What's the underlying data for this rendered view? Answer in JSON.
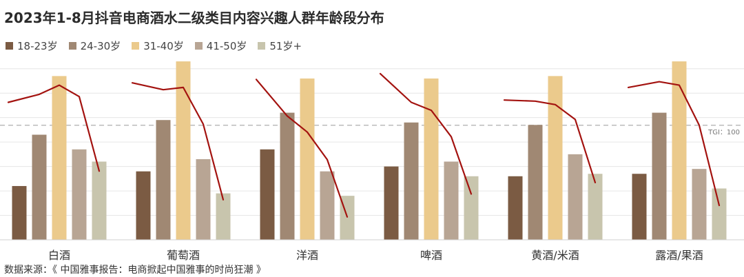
{
  "chart_data": {
    "type": "bar",
    "title": "2023年1-8月抖音电商酒水二级类目内容兴趣人群年龄段分布",
    "categories": [
      "白酒",
      "葡萄酒",
      "洋酒",
      "啤酒",
      "黄酒/米酒",
      "露酒/果酒"
    ],
    "series": [
      {
        "name": "18-23岁",
        "color": "#7b5b43",
        "values": [
          22,
          28,
          37,
          30,
          26,
          27
        ]
      },
      {
        "name": "24-30岁",
        "color": "#a08873",
        "values": [
          43,
          49,
          52,
          48,
          47,
          52
        ]
      },
      {
        "name": "31-40岁",
        "color": "#ebca8c",
        "values": [
          67,
          73,
          66,
          66,
          67,
          73
        ]
      },
      {
        "name": "41-50岁",
        "color": "#b8a594",
        "values": [
          37,
          33,
          28,
          32,
          35,
          29
        ]
      },
      {
        "name": "51岁+",
        "color": "#c8c5ad",
        "values": [
          32,
          19,
          18,
          26,
          27,
          21
        ]
      }
    ],
    "tgi_lines": [
      [
        120,
        127,
        135,
        125,
        60
      ],
      [
        137,
        131,
        133,
        101,
        35
      ],
      [
        140,
        108,
        94,
        70,
        20
      ],
      [
        145,
        120,
        113,
        90,
        40
      ],
      [
        122,
        121,
        118,
        105,
        50
      ],
      [
        133,
        138,
        135,
        100,
        30
      ]
    ],
    "tgi_reference": {
      "label": "TGI：100",
      "value": 100
    },
    "ylim": [
      0,
      75
    ],
    "tgi_ylim": [
      0,
      160
    ],
    "grid": true,
    "legend_position": "top-left"
  },
  "source": "数据来源：《 中国雅事报告：电商掀起中国雅事的时尚狂潮 》",
  "colors": {
    "tgi_line": "#a3120f",
    "reference_line": "#bbbbbb",
    "grid": "#e6e6e6"
  }
}
